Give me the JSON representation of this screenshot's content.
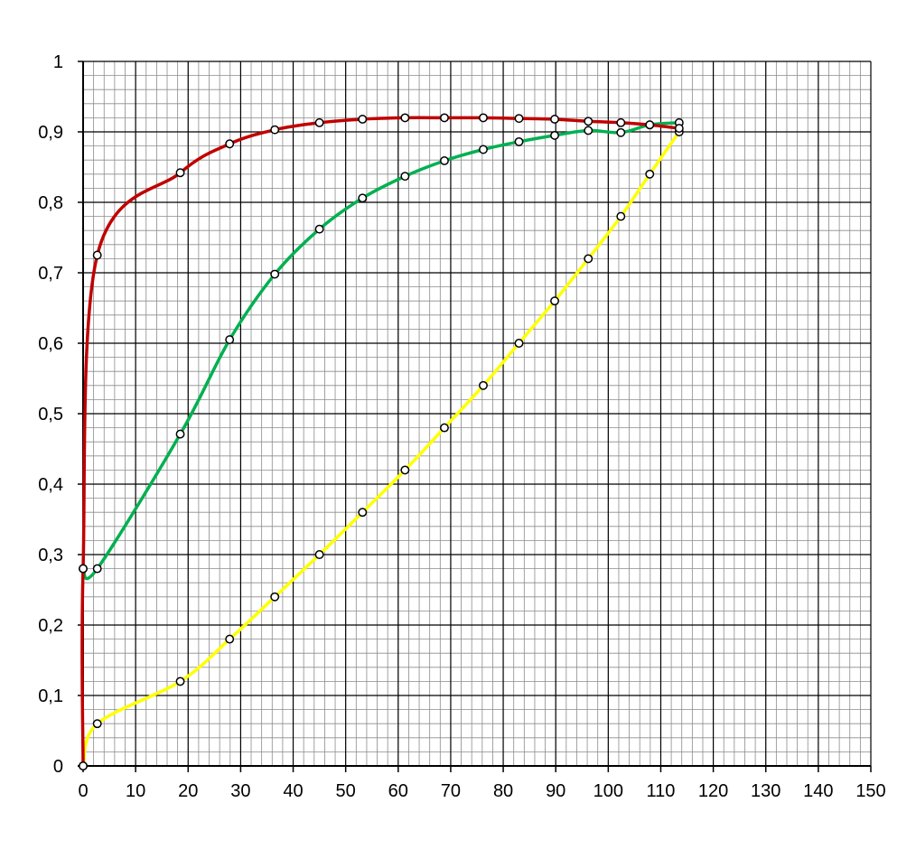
{
  "chart_data": {
    "type": "line",
    "title": "",
    "xlabel": "",
    "ylabel": "",
    "xlim": [
      0,
      150
    ],
    "ylim": [
      0,
      1
    ],
    "x_ticks": [
      "0",
      "10",
      "20",
      "30",
      "40",
      "50",
      "60",
      "70",
      "80",
      "90",
      "100",
      "110",
      "120",
      "130",
      "140",
      "150"
    ],
    "y_ticks": [
      "0",
      "0,1",
      "0,2",
      "0,3",
      "0,4",
      "0,5",
      "0,6",
      "0,7",
      "0,8",
      "0,9",
      "1"
    ],
    "grid": true,
    "legend": "none",
    "series": [
      {
        "color": "#c00000",
        "points": [
          [
            0,
            0
          ],
          [
            0,
            0.28
          ],
          [
            2.7,
            0.725
          ],
          [
            18.5,
            0.842
          ],
          [
            27.9,
            0.883
          ],
          [
            36.5,
            0.903
          ],
          [
            45,
            0.913
          ],
          [
            53.2,
            0.918
          ],
          [
            61.3,
            0.92
          ],
          [
            68.8,
            0.92
          ],
          [
            76.2,
            0.92
          ],
          [
            83,
            0.919
          ],
          [
            89.8,
            0.918
          ],
          [
            96.2,
            0.915
          ],
          [
            102.4,
            0.913
          ],
          [
            107.9,
            0.91
          ],
          [
            113.5,
            0.905
          ]
        ]
      },
      {
        "color": "#00b050",
        "points": [
          [
            0,
            0.28
          ],
          [
            2.7,
            0.28
          ],
          [
            18.5,
            0.471
          ],
          [
            27.9,
            0.605
          ],
          [
            36.5,
            0.698
          ],
          [
            45,
            0.762
          ],
          [
            53.2,
            0.806
          ],
          [
            61.3,
            0.837
          ],
          [
            68.8,
            0.859
          ],
          [
            76.2,
            0.875
          ],
          [
            83,
            0.886
          ],
          [
            89.8,
            0.895
          ],
          [
            96.2,
            0.902
          ],
          [
            102.4,
            0.899
          ],
          [
            107.9,
            0.91
          ],
          [
            113.5,
            0.913
          ]
        ]
      },
      {
        "color": "#ffff00",
        "points": [
          [
            0,
            0
          ],
          [
            2.7,
            0.06
          ],
          [
            18.5,
            0.12
          ],
          [
            27.9,
            0.18
          ],
          [
            36.5,
            0.24
          ],
          [
            45,
            0.3
          ],
          [
            53.2,
            0.36
          ],
          [
            61.3,
            0.42
          ],
          [
            68.8,
            0.48
          ],
          [
            76.2,
            0.54
          ],
          [
            83,
            0.6
          ],
          [
            89.8,
            0.66
          ],
          [
            96.2,
            0.72
          ],
          [
            102.4,
            0.78
          ],
          [
            107.9,
            0.84
          ],
          [
            113.5,
            0.9
          ]
        ]
      }
    ]
  }
}
